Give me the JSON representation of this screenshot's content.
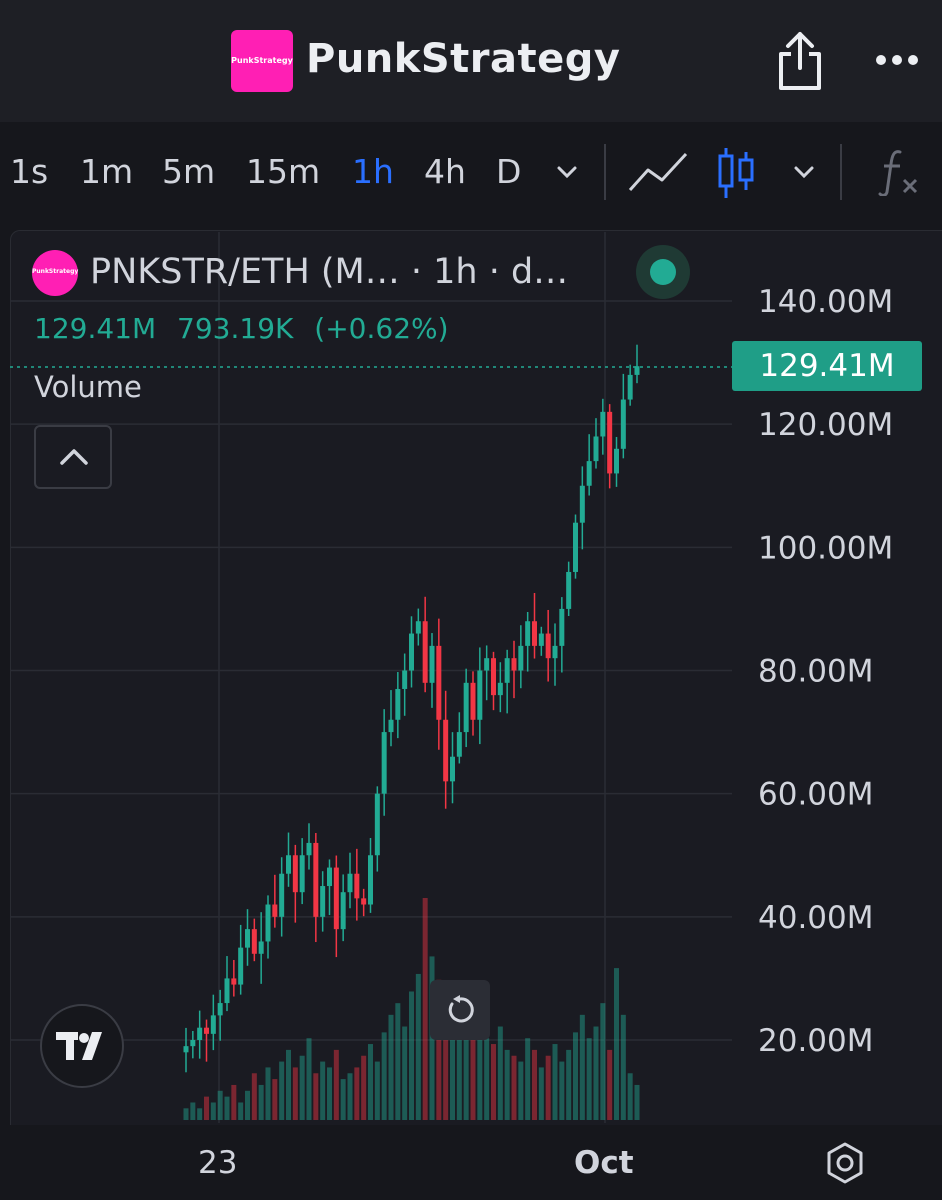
{
  "header": {
    "logo_text": "PunkStrategy",
    "title": "PunkStrategy",
    "icons": [
      "share-icon",
      "more-icon"
    ]
  },
  "toolbar": {
    "timeframes": [
      "1s",
      "1m",
      "5m",
      "15m",
      "1h",
      "4h",
      "D"
    ],
    "active_timeframe": "1h",
    "icons": [
      "timeframe-chevron-icon",
      "line-chart-icon",
      "candlestick-icon",
      "chart-type-chevron-icon",
      "indicators-icon"
    ]
  },
  "legend": {
    "symbol": "PNKSTR/ETH (M… · 1h · d…",
    "close": "129.41M",
    "change": "793.19K",
    "change_pct": "(+0.62%)",
    "volume_label": "Volume"
  },
  "price_label": "129.41M",
  "colors": {
    "up": "#22ab94",
    "down": "#f23645",
    "accent": "#2a6fff",
    "brand": "#ff1fb4",
    "background": "#1a1b22"
  },
  "chart_data": {
    "type": "candlestick",
    "title": "PNKSTR/ETH",
    "interval": "1h",
    "y_axis_labels": [
      "140.00M",
      "120.00M",
      "100.00M",
      "80.00M",
      "60.00M",
      "40.00M",
      "20.00M"
    ],
    "x_axis_labels": [
      "23",
      "Oct"
    ],
    "ylim": [
      0,
      146
    ],
    "y_unit": "M",
    "last_price": 129.41,
    "grid": true,
    "series": [
      {
        "name": "close",
        "approx_values": [
          19,
          20,
          22,
          21,
          24,
          26,
          30,
          29,
          35,
          38,
          34,
          36,
          42,
          40,
          47,
          50,
          44,
          50,
          52,
          40,
          45,
          48,
          38,
          44,
          47,
          43,
          42,
          50,
          60,
          70,
          72,
          77,
          80,
          86,
          88,
          78,
          84,
          72,
          62,
          66,
          70,
          78,
          72,
          80,
          82,
          76,
          78,
          82,
          80,
          84,
          88,
          84,
          86,
          82,
          84,
          90,
          96,
          104,
          110,
          114,
          118,
          122,
          112,
          116,
          124,
          128,
          129.41
        ]
      }
    ],
    "volume": {
      "approx_values": [
        2,
        3,
        2,
        4,
        3,
        5,
        4,
        6,
        3,
        5,
        8,
        6,
        9,
        7,
        10,
        12,
        9,
        11,
        14,
        8,
        10,
        9,
        12,
        7,
        8,
        9,
        11,
        13,
        10,
        15,
        18,
        20,
        16,
        22,
        25,
        38,
        28,
        24,
        20,
        18,
        16,
        15,
        17,
        22,
        14,
        13,
        16,
        12,
        11,
        10,
        14,
        12,
        9,
        11,
        13,
        10,
        12,
        15,
        18,
        14,
        16,
        20,
        12,
        26,
        18,
        8,
        6
      ]
    }
  }
}
